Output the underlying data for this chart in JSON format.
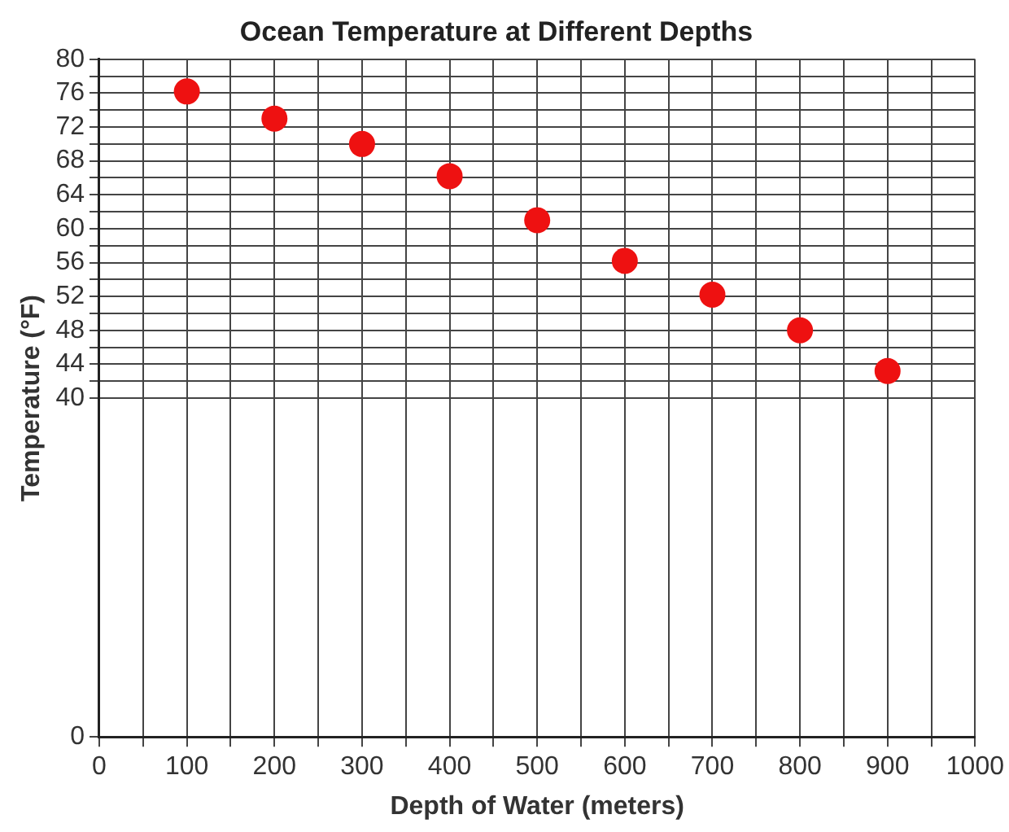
{
  "chart_data": {
    "type": "scatter",
    "title": "Ocean Temperature at Different Depths",
    "xlabel": "Depth of Water (meters)",
    "ylabel": "Temperature (°F)",
    "x": [
      100,
      200,
      300,
      400,
      500,
      600,
      700,
      800,
      900
    ],
    "series": [
      {
        "color": "#ee1111",
        "values": [
          76.2,
          73,
          70,
          66.2,
          61,
          56.2,
          52.2,
          48,
          43.2
        ]
      }
    ],
    "xlim": [
      0,
      1000
    ],
    "xticks": [
      0,
      {
        "value": 50,
        "label": null
      },
      100,
      {
        "value": 150,
        "label": null
      },
      200,
      {
        "value": 250,
        "label": null
      },
      300,
      {
        "value": 350,
        "label": null
      },
      400,
      {
        "value": 450,
        "label": null
      },
      500,
      {
        "value": 550,
        "label": null
      },
      600,
      {
        "value": 650,
        "label": null
      },
      700,
      {
        "value": 750,
        "label": null
      },
      800,
      {
        "value": 850,
        "label": null
      },
      900,
      {
        "value": 950,
        "label": null
      },
      1000
    ],
    "ylim": [
      0,
      80
    ],
    "yticks": [
      0,
      40,
      {
        "value": 42,
        "label": null
      },
      44,
      {
        "value": 46,
        "label": null
      },
      48,
      {
        "value": 50,
        "label": null
      },
      52,
      {
        "value": 54,
        "label": null
      },
      56,
      {
        "value": 58,
        "label": null
      },
      60,
      {
        "value": 62,
        "label": null
      },
      64,
      {
        "value": 66,
        "label": null
      },
      68,
      {
        "value": 70,
        "label": null
      },
      72,
      {
        "value": 74,
        "label": null
      },
      76,
      {
        "value": 78,
        "label": null
      },
      80
    ],
    "grid": true,
    "marker": "circle",
    "legend": false
  }
}
